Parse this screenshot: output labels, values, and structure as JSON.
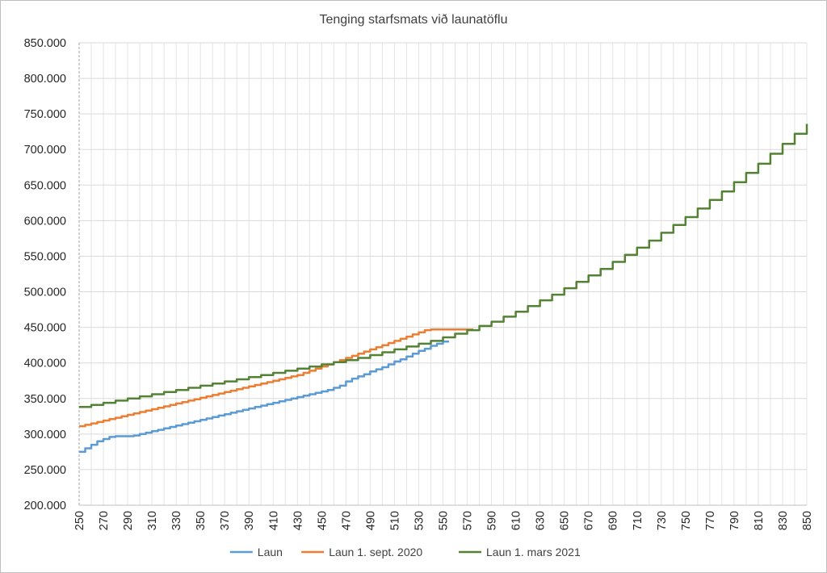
{
  "chart_data": {
    "type": "line",
    "title": "Tenging starfsmats við launatöflu",
    "xlabel": "",
    "ylabel": "",
    "xlim": [
      250,
      850
    ],
    "ylim": [
      200000,
      850000
    ],
    "y_ticks": [
      "200.000",
      "250.000",
      "300.000",
      "350.000",
      "400.000",
      "450.000",
      "500.000",
      "550.000",
      "600.000",
      "650.000",
      "700.000",
      "750.000",
      "800.000",
      "850.000"
    ],
    "x_ticks": [
      "250",
      "270",
      "290",
      "310",
      "330",
      "350",
      "370",
      "390",
      "410",
      "430",
      "450",
      "470",
      "490",
      "510",
      "530",
      "550",
      "570",
      "590",
      "610",
      "630",
      "650",
      "670",
      "690",
      "710",
      "730",
      "750",
      "770",
      "790",
      "810",
      "830",
      "850"
    ],
    "step_width": 5,
    "grid": true,
    "legend_position": "bottom",
    "series": [
      {
        "name": "Laun",
        "color": "#5b9bd5",
        "x": [
          250,
          255,
          260,
          265,
          270,
          275,
          280,
          285,
          290,
          295,
          300,
          305,
          310,
          315,
          320,
          325,
          330,
          335,
          340,
          345,
          350,
          355,
          360,
          365,
          370,
          375,
          380,
          385,
          390,
          395,
          400,
          405,
          410,
          415,
          420,
          425,
          430,
          435,
          440,
          445,
          450,
          455,
          460,
          465,
          470,
          475,
          480,
          485,
          490,
          495,
          500,
          505,
          510,
          515,
          520,
          525,
          530,
          535,
          540,
          545,
          550
        ],
        "y": [
          275000,
          280000,
          285000,
          290000,
          293000,
          296000,
          297000,
          297000,
          297000,
          298000,
          300000,
          302000,
          304000,
          306000,
          308000,
          310000,
          312000,
          314000,
          316000,
          318000,
          320000,
          322000,
          324000,
          326000,
          328000,
          330000,
          332000,
          334000,
          336000,
          338000,
          340000,
          342000,
          344000,
          346000,
          348000,
          350000,
          352000,
          354000,
          356000,
          358000,
          360000,
          362000,
          365000,
          368000,
          374000,
          378000,
          381000,
          384000,
          388000,
          391000,
          394000,
          398000,
          402000,
          405000,
          409000,
          413000,
          417000,
          420000,
          424000,
          427000,
          430000
        ]
      },
      {
        "name": "Laun 1. sept. 2020",
        "color": "#ed7d31",
        "x": [
          250,
          255,
          260,
          265,
          270,
          275,
          280,
          285,
          290,
          295,
          300,
          305,
          310,
          315,
          320,
          325,
          330,
          335,
          340,
          345,
          350,
          355,
          360,
          365,
          370,
          375,
          380,
          385,
          390,
          395,
          400,
          405,
          410,
          415,
          420,
          425,
          430,
          435,
          440,
          445,
          450,
          455,
          460,
          465,
          470,
          475,
          480,
          485,
          490,
          495,
          500,
          505,
          510,
          515,
          520,
          525,
          530,
          535,
          540,
          545,
          550,
          555,
          560,
          565,
          570
        ],
        "y": [
          311000,
          313000,
          315000,
          317000,
          319000,
          321000,
          323000,
          325000,
          327000,
          329000,
          331000,
          333000,
          335000,
          337000,
          339000,
          341000,
          343000,
          345000,
          347000,
          349000,
          351000,
          353000,
          355000,
          357000,
          359000,
          361000,
          363000,
          365000,
          367000,
          369000,
          371000,
          373000,
          375000,
          377000,
          379000,
          381000,
          383000,
          386000,
          389000,
          392000,
          395000,
          398000,
          401000,
          404000,
          407000,
          410000,
          413000,
          416000,
          419000,
          422000,
          425000,
          428000,
          431000,
          434000,
          437000,
          440000,
          443000,
          446000,
          447000,
          447000,
          447000,
          447000,
          447000,
          447000,
          447000
        ]
      },
      {
        "name": "Laun 1. mars 2021",
        "color": "#548235",
        "x": [
          250,
          260,
          270,
          280,
          290,
          300,
          310,
          320,
          330,
          340,
          350,
          360,
          370,
          380,
          390,
          400,
          410,
          420,
          430,
          440,
          450,
          460,
          470,
          480,
          490,
          500,
          510,
          520,
          530,
          540,
          550,
          560,
          570,
          580,
          590,
          600,
          610,
          620,
          630,
          640,
          650,
          660,
          670,
          680,
          690,
          700,
          710,
          720,
          730,
          740,
          750,
          760,
          770,
          780,
          790,
          800,
          810,
          820,
          830,
          840,
          850
        ],
        "y": [
          338000,
          341000,
          344000,
          347000,
          350000,
          353000,
          356000,
          359000,
          362000,
          365000,
          368000,
          371000,
          374000,
          377000,
          380000,
          383000,
          386000,
          389000,
          392000,
          395000,
          398000,
          401000,
          404000,
          407000,
          411000,
          415000,
          419000,
          423000,
          427000,
          431000,
          436000,
          441000,
          446000,
          452000,
          458000,
          465000,
          472000,
          480000,
          488000,
          496000,
          505000,
          514000,
          523000,
          532000,
          542000,
          552000,
          562000,
          572000,
          583000,
          594000,
          605000,
          617000,
          629000,
          641000,
          654000,
          667000,
          680000,
          694000,
          708000,
          722000,
          736000
        ]
      }
    ]
  }
}
